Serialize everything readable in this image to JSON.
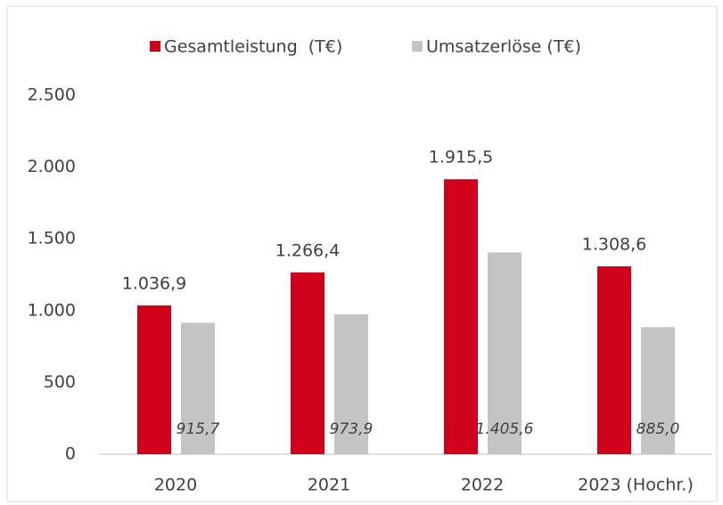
{
  "chart_data": {
    "type": "bar",
    "categories": [
      "2020",
      "2021",
      "2022",
      "2023 (Hochr.)"
    ],
    "series": [
      {
        "name": "Gesamtleistung  (T€)",
        "color": "#d0021b",
        "values": [
          1036.9,
          1266.4,
          1915.5,
          1308.6
        ],
        "value_labels": [
          "1.036,9",
          "1.266,4",
          "1.915,5",
          "1.308,6"
        ]
      },
      {
        "name": "Umsatzerlöse (T€)",
        "color": "#c4c4c4",
        "values": [
          915.7,
          973.9,
          1405.6,
          885.0
        ],
        "value_labels": [
          "915,7",
          "973,9",
          "1.405,6",
          "885,0"
        ]
      }
    ],
    "ylim": [
      0,
      2500
    ],
    "yticks": [
      0,
      500,
      {
        "value": 1000,
        "label": "1.000"
      },
      {
        "value": 1500,
        "label": "1.500"
      },
      {
        "value": 2000,
        "label": "2.000"
      },
      {
        "value": 2500,
        "label": "2.500"
      }
    ],
    "legend": "top",
    "grid": false
  }
}
